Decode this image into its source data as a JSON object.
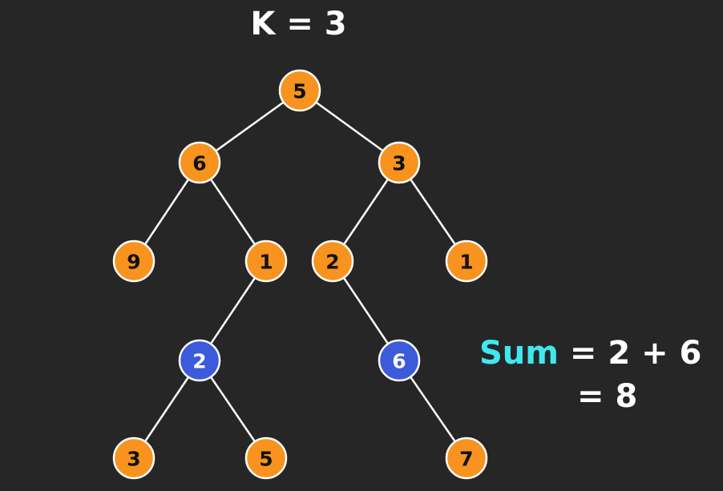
{
  "title": "K = 3",
  "colors": {
    "background": "#262626",
    "node_default": "#f7931e",
    "node_highlight": "#3b5bdb",
    "node_stroke": "#ffffff",
    "edge": "#ffffff",
    "sum_word": "#3fe8f0"
  },
  "tree": {
    "nodes": [
      {
        "id": "n1",
        "value": "5",
        "highlight": false
      },
      {
        "id": "n2",
        "value": "6",
        "highlight": false
      },
      {
        "id": "n3",
        "value": "3",
        "highlight": false
      },
      {
        "id": "n4",
        "value": "9",
        "highlight": false
      },
      {
        "id": "n5",
        "value": "1",
        "highlight": false
      },
      {
        "id": "n6",
        "value": "2",
        "highlight": false
      },
      {
        "id": "n7",
        "value": "1",
        "highlight": false
      },
      {
        "id": "n8",
        "value": "2",
        "highlight": true
      },
      {
        "id": "n9",
        "value": "6",
        "highlight": true
      },
      {
        "id": "n10",
        "value": "3",
        "highlight": false
      },
      {
        "id": "n11",
        "value": "5",
        "highlight": false
      },
      {
        "id": "n12",
        "value": "7",
        "highlight": false
      }
    ],
    "edges": [
      [
        "n1",
        "n2"
      ],
      [
        "n1",
        "n3"
      ],
      [
        "n2",
        "n4"
      ],
      [
        "n2",
        "n5"
      ],
      [
        "n3",
        "n6"
      ],
      [
        "n3",
        "n7"
      ],
      [
        "n5",
        "n8"
      ],
      [
        "n6",
        "n9"
      ],
      [
        "n8",
        "n10"
      ],
      [
        "n8",
        "n11"
      ],
      [
        "n9",
        "n12"
      ]
    ]
  },
  "sum": {
    "word": "Sum",
    "expression": " = 2 + 6",
    "result": "= 8"
  }
}
